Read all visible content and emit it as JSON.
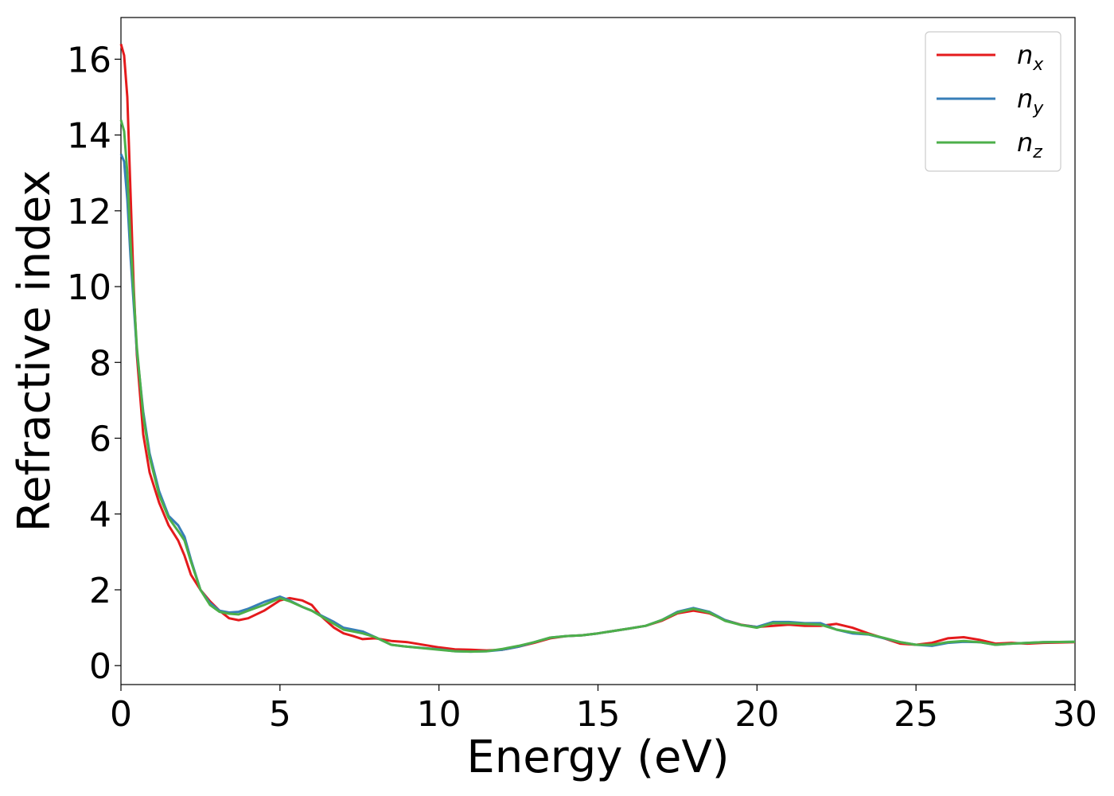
{
  "chart_data": {
    "type": "line",
    "xlabel": "Energy (eV)",
    "ylabel": "Refractive index",
    "xlim": [
      0,
      30
    ],
    "ylim": [
      -0.5,
      17.1
    ],
    "xticks": [
      0,
      5,
      10,
      15,
      20,
      25,
      30
    ],
    "yticks": [
      0,
      2,
      4,
      6,
      8,
      10,
      12,
      14,
      16
    ],
    "grid": false,
    "legend_position": "top-right",
    "series": [
      {
        "name": "n",
        "subscript": "x",
        "color": "#e41a1c",
        "points": [
          [
            0,
            16.4
          ],
          [
            0.1,
            16.1
          ],
          [
            0.2,
            15.0
          ],
          [
            0.3,
            12.5
          ],
          [
            0.4,
            10.0
          ],
          [
            0.5,
            8.2
          ],
          [
            0.7,
            6.1
          ],
          [
            0.9,
            5.1
          ],
          [
            1.2,
            4.3
          ],
          [
            1.5,
            3.7
          ],
          [
            1.8,
            3.3
          ],
          [
            2.0,
            2.9
          ],
          [
            2.2,
            2.4
          ],
          [
            2.5,
            2.0
          ],
          [
            2.8,
            1.7
          ],
          [
            3.1,
            1.45
          ],
          [
            3.4,
            1.25
          ],
          [
            3.7,
            1.2
          ],
          [
            4.0,
            1.25
          ],
          [
            4.5,
            1.45
          ],
          [
            5.0,
            1.72
          ],
          [
            5.3,
            1.78
          ],
          [
            5.7,
            1.72
          ],
          [
            6.0,
            1.6
          ],
          [
            6.3,
            1.3
          ],
          [
            6.7,
            1.0
          ],
          [
            7.0,
            0.85
          ],
          [
            7.3,
            0.78
          ],
          [
            7.6,
            0.7
          ],
          [
            8.0,
            0.72
          ],
          [
            8.5,
            0.65
          ],
          [
            9.0,
            0.62
          ],
          [
            10.0,
            0.48
          ],
          [
            10.5,
            0.43
          ],
          [
            11.0,
            0.42
          ],
          [
            11.5,
            0.4
          ],
          [
            12.0,
            0.42
          ],
          [
            12.5,
            0.5
          ],
          [
            13.0,
            0.6
          ],
          [
            13.5,
            0.72
          ],
          [
            14.0,
            0.78
          ],
          [
            14.5,
            0.8
          ],
          [
            15.0,
            0.85
          ],
          [
            16.0,
            0.98
          ],
          [
            16.5,
            1.05
          ],
          [
            17.0,
            1.18
          ],
          [
            17.5,
            1.38
          ],
          [
            18.0,
            1.45
          ],
          [
            18.5,
            1.38
          ],
          [
            19.0,
            1.2
          ],
          [
            19.5,
            1.08
          ],
          [
            20.0,
            1.02
          ],
          [
            20.5,
            1.05
          ],
          [
            21.0,
            1.08
          ],
          [
            21.5,
            1.05
          ],
          [
            22.0,
            1.05
          ],
          [
            22.5,
            1.1
          ],
          [
            23.0,
            1.0
          ],
          [
            23.5,
            0.85
          ],
          [
            24.0,
            0.72
          ],
          [
            24.5,
            0.58
          ],
          [
            25.0,
            0.55
          ],
          [
            25.5,
            0.6
          ],
          [
            26.0,
            0.72
          ],
          [
            26.5,
            0.75
          ],
          [
            27.0,
            0.68
          ],
          [
            27.5,
            0.58
          ],
          [
            28.0,
            0.6
          ],
          [
            28.5,
            0.58
          ],
          [
            29.0,
            0.6
          ],
          [
            30.0,
            0.62
          ]
        ]
      },
      {
        "name": "n",
        "subscript": "y",
        "color": "#377eb8",
        "points": [
          [
            0,
            13.5
          ],
          [
            0.1,
            13.3
          ],
          [
            0.2,
            12.3
          ],
          [
            0.3,
            10.8
          ],
          [
            0.5,
            8.3
          ],
          [
            0.7,
            6.7
          ],
          [
            0.9,
            5.6
          ],
          [
            1.2,
            4.6
          ],
          [
            1.5,
            3.95
          ],
          [
            1.8,
            3.7
          ],
          [
            2.0,
            3.4
          ],
          [
            2.2,
            2.8
          ],
          [
            2.5,
            2.0
          ],
          [
            2.8,
            1.65
          ],
          [
            3.1,
            1.45
          ],
          [
            3.4,
            1.4
          ],
          [
            3.7,
            1.42
          ],
          [
            4.0,
            1.5
          ],
          [
            4.5,
            1.68
          ],
          [
            5.0,
            1.82
          ],
          [
            5.3,
            1.72
          ],
          [
            5.7,
            1.55
          ],
          [
            6.0,
            1.45
          ],
          [
            6.3,
            1.32
          ],
          [
            6.7,
            1.15
          ],
          [
            7.0,
            1.0
          ],
          [
            7.3,
            0.95
          ],
          [
            7.6,
            0.9
          ],
          [
            8.0,
            0.75
          ],
          [
            8.5,
            0.55
          ],
          [
            9.0,
            0.5
          ],
          [
            10.0,
            0.43
          ],
          [
            10.5,
            0.38
          ],
          [
            11.0,
            0.37
          ],
          [
            11.5,
            0.38
          ],
          [
            12.0,
            0.42
          ],
          [
            12.5,
            0.5
          ],
          [
            13.0,
            0.62
          ],
          [
            13.5,
            0.74
          ],
          [
            14.0,
            0.78
          ],
          [
            14.5,
            0.8
          ],
          [
            15.0,
            0.85
          ],
          [
            16.0,
            0.98
          ],
          [
            16.5,
            1.05
          ],
          [
            17.0,
            1.2
          ],
          [
            17.5,
            1.42
          ],
          [
            18.0,
            1.52
          ],
          [
            18.5,
            1.42
          ],
          [
            19.0,
            1.2
          ],
          [
            19.5,
            1.07
          ],
          [
            20.0,
            1.02
          ],
          [
            20.5,
            1.15
          ],
          [
            21.0,
            1.15
          ],
          [
            21.5,
            1.12
          ],
          [
            22.0,
            1.12
          ],
          [
            22.5,
            0.95
          ],
          [
            23.0,
            0.85
          ],
          [
            23.5,
            0.82
          ],
          [
            24.0,
            0.72
          ],
          [
            24.5,
            0.62
          ],
          [
            25.0,
            0.55
          ],
          [
            25.5,
            0.52
          ],
          [
            26.0,
            0.6
          ],
          [
            26.5,
            0.63
          ],
          [
            27.0,
            0.62
          ],
          [
            27.5,
            0.55
          ],
          [
            28.0,
            0.58
          ],
          [
            28.5,
            0.6
          ],
          [
            29.0,
            0.62
          ],
          [
            30.0,
            0.63
          ]
        ]
      },
      {
        "name": "n",
        "subscript": "z",
        "color": "#4daf4a",
        "points": [
          [
            0,
            14.4
          ],
          [
            0.1,
            14.1
          ],
          [
            0.2,
            13.0
          ],
          [
            0.3,
            11.2
          ],
          [
            0.5,
            8.4
          ],
          [
            0.7,
            6.6
          ],
          [
            0.9,
            5.5
          ],
          [
            1.2,
            4.5
          ],
          [
            1.5,
            3.9
          ],
          [
            1.8,
            3.55
          ],
          [
            2.0,
            3.3
          ],
          [
            2.2,
            2.75
          ],
          [
            2.5,
            2.0
          ],
          [
            2.8,
            1.6
          ],
          [
            3.1,
            1.42
          ],
          [
            3.4,
            1.37
          ],
          [
            3.7,
            1.35
          ],
          [
            4.0,
            1.45
          ],
          [
            4.5,
            1.6
          ],
          [
            5.0,
            1.78
          ],
          [
            5.3,
            1.7
          ],
          [
            5.7,
            1.55
          ],
          [
            6.0,
            1.45
          ],
          [
            6.3,
            1.3
          ],
          [
            6.7,
            1.1
          ],
          [
            7.0,
            0.95
          ],
          [
            7.3,
            0.9
          ],
          [
            7.6,
            0.85
          ],
          [
            8.0,
            0.75
          ],
          [
            8.5,
            0.55
          ],
          [
            9.0,
            0.5
          ],
          [
            10.0,
            0.42
          ],
          [
            10.5,
            0.38
          ],
          [
            11.0,
            0.37
          ],
          [
            11.5,
            0.38
          ],
          [
            12.0,
            0.44
          ],
          [
            12.5,
            0.52
          ],
          [
            13.0,
            0.62
          ],
          [
            13.5,
            0.74
          ],
          [
            14.0,
            0.78
          ],
          [
            14.5,
            0.8
          ],
          [
            15.0,
            0.85
          ],
          [
            16.0,
            0.98
          ],
          [
            16.5,
            1.05
          ],
          [
            17.0,
            1.2
          ],
          [
            17.5,
            1.4
          ],
          [
            18.0,
            1.5
          ],
          [
            18.5,
            1.4
          ],
          [
            19.0,
            1.18
          ],
          [
            19.5,
            1.07
          ],
          [
            20.0,
            1.0
          ],
          [
            20.5,
            1.12
          ],
          [
            21.0,
            1.12
          ],
          [
            21.5,
            1.1
          ],
          [
            22.0,
            1.08
          ],
          [
            22.5,
            0.95
          ],
          [
            23.0,
            0.88
          ],
          [
            23.5,
            0.83
          ],
          [
            24.0,
            0.73
          ],
          [
            24.5,
            0.62
          ],
          [
            25.0,
            0.55
          ],
          [
            25.5,
            0.55
          ],
          [
            26.0,
            0.62
          ],
          [
            26.5,
            0.65
          ],
          [
            27.0,
            0.62
          ],
          [
            27.5,
            0.55
          ],
          [
            28.0,
            0.58
          ],
          [
            28.5,
            0.6
          ],
          [
            29.0,
            0.62
          ],
          [
            30.0,
            0.63
          ]
        ]
      }
    ]
  }
}
